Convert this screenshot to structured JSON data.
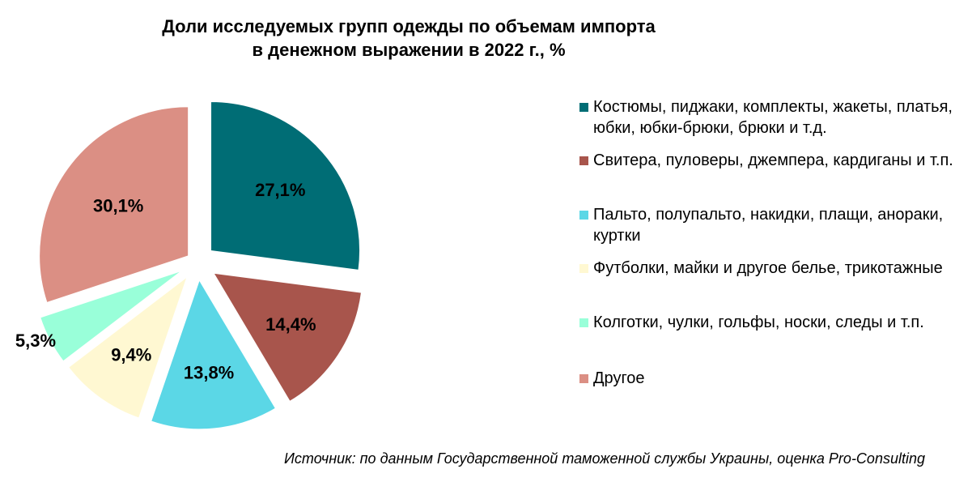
{
  "title_lines": [
    "Доли исследуемых групп одежды по объемам импорта",
    "в денежном выражении в 2022 г., %"
  ],
  "source": "Источник: по данным Государственной таможенной службы Украины, оценка Pro-Consulting",
  "chart_data": {
    "type": "pie",
    "title": "Доли исследуемых групп одежды по объемам импорта в денежном выражении в 2022 г., %",
    "categories": [
      "Костюмы, пиджаки, комплекты, жакеты, платья, юбки, юбки-брюки, брюки и т.д.",
      "Свитера, пуловеры, джемпера, кардиганы и т.п.",
      "Пальто, полупальто, накидки, плащи, анораки, куртки",
      "Футболки, майки и другое белье, трикотажные",
      "Колготки, чулки, гольфы, носки, следы и т.п.",
      "Другое"
    ],
    "values": [
      27.1,
      14.4,
      13.8,
      9.4,
      5.3,
      30.1
    ],
    "data_labels": [
      "27,1%",
      "14,4%",
      "13,8%",
      "9,4%",
      "5,3%",
      "30,1%"
    ],
    "colors": [
      "#006D75",
      "#A8554C",
      "#5BD7E6",
      "#FFF8D2",
      "#99FFD9",
      "#DB8F84"
    ],
    "legend_position": "right",
    "exploded": true
  }
}
